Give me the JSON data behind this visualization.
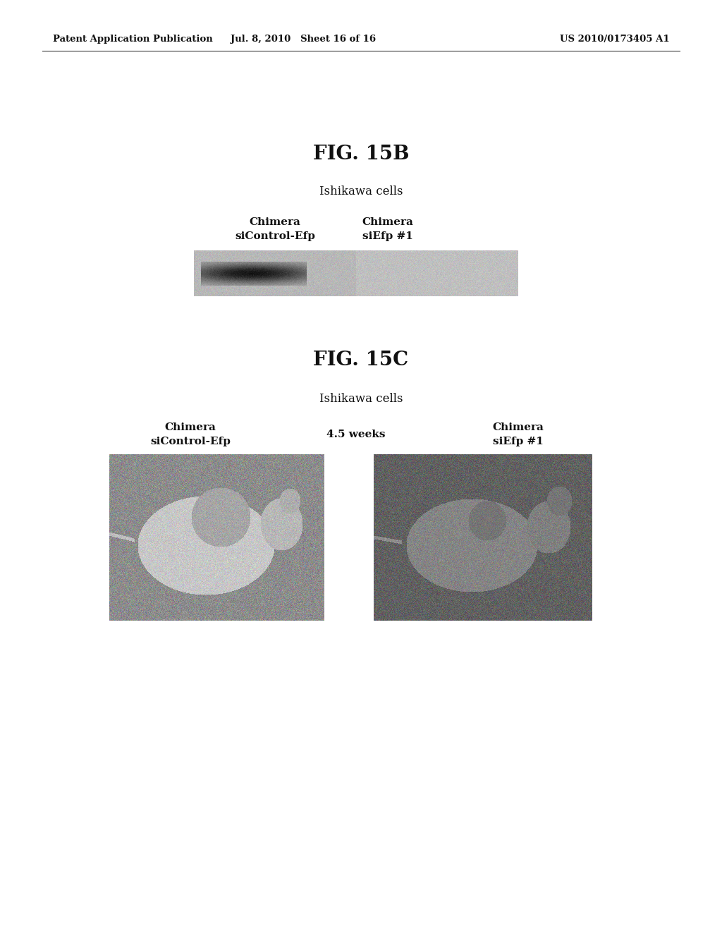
{
  "background_color": "#ffffff",
  "header_left": "Patent Application Publication",
  "header_mid": "Jul. 8, 2010   Sheet 16 of 16",
  "header_right": "US 2010/0173405 A1",
  "header_fontsize": 9.5,
  "fig15b_title": "FIG. 15B",
  "fig15b_title_fontsize": 20,
  "fig15b_subtitle": "Ishikawa cells",
  "fig15b_subtitle_fontsize": 12,
  "fig15b_label1_line1": "Chimera",
  "fig15b_label1_line2": "siControl-Efp",
  "fig15b_label2_line1": "Chimera",
  "fig15b_label2_line2": "siEfp #1",
  "fig15b_labels_fontsize": 11,
  "fig15c_title": "FIG. 15C",
  "fig15c_title_fontsize": 20,
  "fig15c_subtitle": "Ishikawa cells",
  "fig15c_subtitle_fontsize": 12,
  "fig15c_label1_line1": "Chimera",
  "fig15c_label1_line2": "siControl-Efp",
  "fig15c_label_mid": "4.5 weeks",
  "fig15c_label3_line1": "Chimera",
  "fig15c_label3_line2": "siEfp #1",
  "fig15c_labels_fontsize": 11
}
